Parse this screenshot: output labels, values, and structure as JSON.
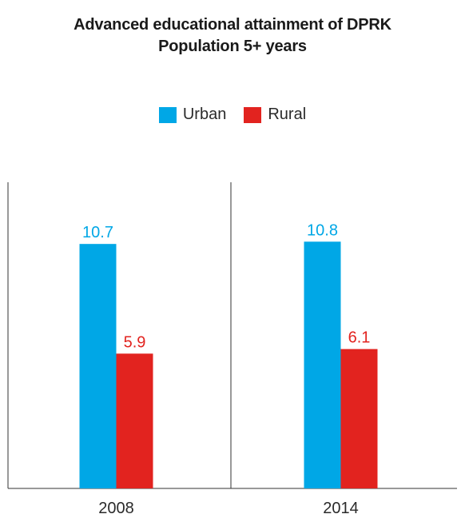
{
  "chart_data": {
    "type": "bar",
    "title": "Advanced educational attainment of DPRK",
    "subtitle": "Population 5+ years",
    "xlabel": "",
    "ylabel": "",
    "categories": [
      "2008",
      "2014"
    ],
    "series": [
      {
        "name": "Urban",
        "color": "#00a7e6",
        "values": [
          10.7,
          10.8
        ]
      },
      {
        "name": "Rural",
        "color": "#e2231f",
        "values": [
          5.9,
          6.1
        ]
      }
    ],
    "ylim": [
      0,
      13.4
    ],
    "grid": false,
    "legend_position": "top-center"
  }
}
